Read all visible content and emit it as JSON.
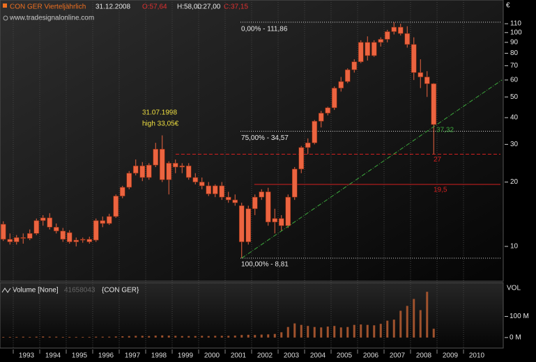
{
  "chart_data": [
    {
      "type": "candlestick",
      "title": "CON GER Vierteljährlich",
      "date": "31.12.2008",
      "ohlc_labels": [
        "O:57,64",
        "H:58,00",
        "L:27,00",
        "C:37,15"
      ],
      "source": "www.tradesignalonline.com",
      "currency": "€",
      "x": [
        1992.625,
        1992.875,
        1993.125,
        1993.375,
        1993.625,
        1993.875,
        1994.125,
        1994.375,
        1994.625,
        1994.875,
        1995.125,
        1995.375,
        1995.625,
        1995.875,
        1996.125,
        1996.375,
        1996.625,
        1996.875,
        1997.125,
        1997.375,
        1997.625,
        1997.875,
        1998.125,
        1998.375,
        1998.625,
        1998.875,
        1999.125,
        1999.375,
        1999.625,
        1999.875,
        2000.125,
        2000.375,
        2000.625,
        2000.875,
        2001.125,
        2001.375,
        2001.625,
        2001.875,
        2002.125,
        2002.375,
        2002.625,
        2002.875,
        2003.125,
        2003.375,
        2003.625,
        2003.875,
        2004.125,
        2004.375,
        2004.625,
        2004.875,
        2005.125,
        2005.375,
        2005.625,
        2005.875,
        2006.125,
        2006.375,
        2006.625,
        2006.875,
        2007.125,
        2007.375,
        2007.625,
        2007.875,
        2008.125,
        2008.375,
        2008.625,
        2008.875
      ],
      "open": [
        12.7,
        10.8,
        10.5,
        11.0,
        10.9,
        11.5,
        13.2,
        13.6,
        12.3,
        11.8,
        11.6,
        10.5,
        10.7,
        10.8,
        10.7,
        13.2,
        12.8,
        13.8,
        17.2,
        18.9,
        22.0,
        23.8,
        21.0,
        24.0,
        28.5,
        20.5,
        24.5,
        23.5,
        23.8,
        21.0,
        20.0,
        19.2,
        17.6,
        19.2,
        17.0,
        16.5,
        15.5,
        10.5,
        15.0,
        17.0,
        18.0,
        13.0,
        13.5,
        12.5,
        17.0,
        23.0,
        29.0,
        30.5,
        38.5,
        42.0,
        44.5,
        55.0,
        59.0,
        67.0,
        73.0,
        90.0,
        78.0,
        90.0,
        93.0,
        101.0,
        106.0,
        99.0,
        88.0,
        65.0,
        62.0,
        57.64
      ],
      "high": [
        13.1,
        11.5,
        11.3,
        11.5,
        12.0,
        13.5,
        14.0,
        14.3,
        12.8,
        12.2,
        11.9,
        11.0,
        11.0,
        11.1,
        13.5,
        13.8,
        14.2,
        17.5,
        19.2,
        22.5,
        25.5,
        24.8,
        24.5,
        30.5,
        33.05,
        25.0,
        25.5,
        24.5,
        24.5,
        22.0,
        21.0,
        20.0,
        19.5,
        20.0,
        18.0,
        17.5,
        16.0,
        15.5,
        17.5,
        18.5,
        18.8,
        15.0,
        14.0,
        17.5,
        23.5,
        29.5,
        32.0,
        39.0,
        43.0,
        45.0,
        56.0,
        62.0,
        68.0,
        75.0,
        92.0,
        96.0,
        92.0,
        95.0,
        103.0,
        111.86,
        110.0,
        107.0,
        95.0,
        75.0,
        66.0,
        58.0
      ],
      "low": [
        10.6,
        10.2,
        10.2,
        10.3,
        10.7,
        11.3,
        12.5,
        12.0,
        11.5,
        10.5,
        10.3,
        10.0,
        10.4,
        10.3,
        10.5,
        12.3,
        12.6,
        13.6,
        16.8,
        18.5,
        21.5,
        20.2,
        20.5,
        23.5,
        20.0,
        17.5,
        22.0,
        22.0,
        20.5,
        19.5,
        18.5,
        17.2,
        17.0,
        16.5,
        16.0,
        15.5,
        8.81,
        10.2,
        14.0,
        16.5,
        12.5,
        11.5,
        11.8,
        12.2,
        16.5,
        22.0,
        27.0,
        30.0,
        36.0,
        41.0,
        43.5,
        53.0,
        58.0,
        65.0,
        72.0,
        74.0,
        77.0,
        86.0,
        90.0,
        98.0,
        97.0,
        85.0,
        60.0,
        55.0,
        50.0,
        27.0
      ],
      "close": [
        10.8,
        10.5,
        11.0,
        10.9,
        11.5,
        13.2,
        13.6,
        12.3,
        11.8,
        10.8,
        10.5,
        10.7,
        10.8,
        10.5,
        13.2,
        12.8,
        13.8,
        17.2,
        18.9,
        22.0,
        23.8,
        21.0,
        24.0,
        28.5,
        20.5,
        24.5,
        23.5,
        23.8,
        21.0,
        20.0,
        19.2,
        17.6,
        19.2,
        17.0,
        16.5,
        16.0,
        10.5,
        15.0,
        17.0,
        18.0,
        13.0,
        13.5,
        12.5,
        17.0,
        23.0,
        29.0,
        30.5,
        38.5,
        42.0,
        44.5,
        55.0,
        59.0,
        67.0,
        73.0,
        90.0,
        78.0,
        90.0,
        93.0,
        101.0,
        106.0,
        99.0,
        88.0,
        65.0,
        62.0,
        57.64,
        37.15
      ],
      "color": "#ec6440",
      "xlim": [
        1992.5,
        2011.5
      ],
      "xticks": [
        1993,
        1994,
        1995,
        1996,
        1997,
        1998,
        1999,
        2000,
        2001,
        2002,
        2003,
        2004,
        2005,
        2006,
        2007,
        2008,
        2009,
        2010
      ],
      "ylim": [
        6.82,
        142
      ],
      "yticks": [
        10,
        20,
        30,
        40,
        50,
        60,
        70,
        80,
        90,
        100,
        110
      ],
      "log_scale": true,
      "x_grid": true,
      "fib_levels": [
        {
          "value": 111.86,
          "label": "0,00% - 111,86"
        },
        {
          "value": 34.57,
          "label": "75,00% - 34,57"
        },
        {
          "value": 8.81,
          "label": "100,00% - 8,81"
        }
      ],
      "fib_start": 2001.58,
      "fib_color": "#d8d8d8",
      "levels": [
        {
          "value": 27,
          "label": "27",
          "from": 1999.13,
          "style": "dashed",
          "color": "#d42020"
        },
        {
          "value": 19.5,
          "label": "19,5",
          "from": 2002.1,
          "style": "solid",
          "color": "#d42020"
        }
      ],
      "trendline": {
        "x": [
          2001.625,
          2011.45
        ],
        "y": [
          8.81,
          60
        ],
        "color": "#3ca83c",
        "label": "37,32"
      },
      "annotation": [
        "31.07.1998",
        "high 33,05€"
      ]
    },
    {
      "type": "bar",
      "title": "Volume [None]",
      "last_value": "41658043",
      "symbol": "{CON GER}",
      "axis_label": "VOL",
      "x": [
        1992.625,
        1992.875,
        1993.125,
        1993.375,
        1993.625,
        1993.875,
        1994.125,
        1994.375,
        1994.625,
        1994.875,
        1995.125,
        1995.375,
        1995.625,
        1995.875,
        1996.125,
        1996.375,
        1996.625,
        1996.875,
        1997.125,
        1997.375,
        1997.625,
        1997.875,
        1998.125,
        1998.375,
        1998.625,
        1998.875,
        1999.125,
        1999.375,
        1999.625,
        1999.875,
        2000.125,
        2000.375,
        2000.625,
        2000.875,
        2001.125,
        2001.375,
        2001.625,
        2001.875,
        2002.125,
        2002.375,
        2002.625,
        2002.875,
        2003.125,
        2003.375,
        2003.625,
        2003.875,
        2004.125,
        2004.375,
        2004.625,
        2004.875,
        2005.125,
        2005.375,
        2005.625,
        2005.875,
        2006.125,
        2006.375,
        2006.625,
        2006.875,
        2007.125,
        2007.375,
        2007.625,
        2007.875,
        2008.125,
        2008.375,
        2008.625,
        2008.875
      ],
      "values": [
        3000000,
        3000000,
        3000000,
        4000000,
        3000000,
        4000000,
        5000000,
        4000000,
        4000000,
        3000000,
        3000000,
        3000000,
        3000000,
        3000000,
        4000000,
        4000000,
        4000000,
        5000000,
        6000000,
        7000000,
        8000000,
        8000000,
        7000000,
        9000000,
        10000000,
        9000000,
        8000000,
        7000000,
        7000000,
        7000000,
        8000000,
        7000000,
        8000000,
        8000000,
        8000000,
        9000000,
        12000000,
        13000000,
        12000000,
        14000000,
        15000000,
        17000000,
        25000000,
        50000000,
        67000000,
        60000000,
        55000000,
        50000000,
        48000000,
        52000000,
        55000000,
        48000000,
        50000000,
        60000000,
        62000000,
        60000000,
        58000000,
        65000000,
        80000000,
        85000000,
        127000000,
        150000000,
        183000000,
        130000000,
        217000000,
        41658043
      ],
      "color": "#a0522d",
      "xlim": [
        1992.5,
        2011.5
      ],
      "ylim": [
        -50000000,
        257000000
      ],
      "yticks": [
        {
          "value": 100000000,
          "label": "100 M"
        },
        {
          "value": 0,
          "label": "0 M"
        }
      ]
    }
  ]
}
